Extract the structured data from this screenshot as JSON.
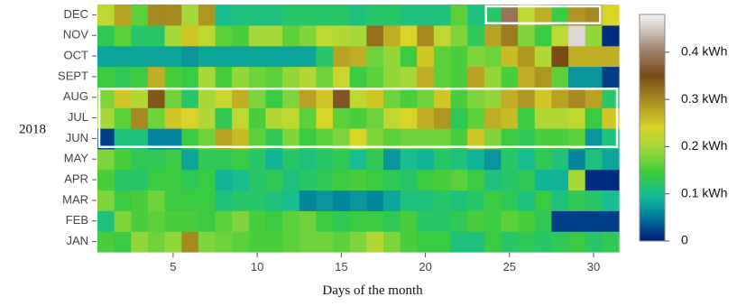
{
  "chart_data": {
    "type": "heatmap",
    "title": "",
    "xlabel": "Days of the month",
    "ylabel": "",
    "year_label": "2018",
    "x": [
      1,
      2,
      3,
      4,
      5,
      6,
      7,
      8,
      9,
      10,
      11,
      12,
      13,
      14,
      15,
      16,
      17,
      18,
      19,
      20,
      21,
      22,
      23,
      24,
      25,
      26,
      27,
      28,
      29,
      30,
      31
    ],
    "x_ticks": [
      5,
      10,
      15,
      20,
      25,
      30
    ],
    "months": [
      "JAN",
      "FEB",
      "MAR",
      "APR",
      "MAY",
      "JUN",
      "JUL",
      "AUG",
      "SEPT",
      "OCT",
      "NOV",
      "DEC"
    ],
    "colorscale": {
      "min": 0,
      "max": 0.48,
      "unit": "kWh",
      "ticks": [
        0,
        0.1,
        0.2,
        0.3,
        0.4
      ],
      "tick_labels": [
        "0",
        "0.1 kWh",
        "0.2 kWh",
        "0.3 kWh",
        "0.4 kWh"
      ],
      "stops": [
        [
          0.0,
          "#001a78"
        ],
        [
          0.1,
          "#00739f"
        ],
        [
          0.2,
          "#14bd96"
        ],
        [
          0.3,
          "#3ecc3c"
        ],
        [
          0.42,
          "#a8d93a"
        ],
        [
          0.5,
          "#d8d428"
        ],
        [
          0.62,
          "#a88c22"
        ],
        [
          0.73,
          "#7a4a15"
        ],
        [
          0.84,
          "#a0826c"
        ],
        [
          1.0,
          "#f5f5f5"
        ]
      ]
    },
    "values": [
      [
        0.15,
        0.14,
        0.19,
        0.17,
        0.19,
        0.3,
        0.18,
        0.17,
        0.16,
        0.15,
        0.15,
        0.16,
        0.17,
        0.17,
        0.16,
        0.18,
        0.21,
        0.18,
        0.15,
        0.14,
        0.14,
        0.11,
        0.11,
        0.14,
        0.12,
        0.13,
        0.12,
        0.13,
        0.14,
        0.12,
        0.13
      ],
      [
        0.11,
        0.18,
        0.15,
        0.16,
        0.15,
        0.15,
        0.14,
        0.16,
        0.18,
        0.15,
        0.14,
        0.16,
        0.17,
        0.14,
        0.13,
        0.14,
        0.14,
        0.13,
        0.15,
        0.12,
        0.12,
        0.13,
        0.15,
        0.14,
        0.16,
        0.15,
        0.13,
        0.02,
        0.02,
        0.02,
        0.02
      ],
      [
        0.18,
        0.14,
        0.15,
        0.17,
        0.14,
        0.14,
        0.14,
        0.11,
        0.12,
        0.12,
        0.11,
        0.1,
        0.06,
        0.07,
        0.06,
        0.07,
        0.06,
        0.08,
        0.11,
        0.11,
        0.12,
        0.11,
        0.12,
        0.14,
        0.13,
        0.11,
        0.14,
        0.11,
        0.13,
        0.12,
        0.1
      ],
      [
        0.15,
        0.12,
        0.12,
        0.14,
        0.14,
        0.13,
        0.14,
        0.09,
        0.1,
        0.12,
        0.13,
        0.11,
        0.12,
        0.13,
        0.14,
        0.15,
        0.14,
        0.13,
        0.12,
        0.14,
        0.15,
        0.16,
        0.14,
        0.11,
        0.12,
        0.13,
        0.09,
        0.09,
        0.2,
        0.01,
        0.01
      ],
      [
        0.18,
        0.15,
        0.13,
        0.13,
        0.14,
        0.08,
        0.13,
        0.13,
        0.14,
        0.12,
        0.09,
        0.12,
        0.11,
        0.12,
        0.13,
        0.1,
        0.13,
        0.07,
        0.1,
        0.09,
        0.12,
        0.11,
        0.09,
        0.07,
        0.12,
        0.1,
        0.13,
        0.11,
        0.06,
        0.11,
        0.08
      ],
      [
        0.02,
        0.11,
        0.11,
        0.06,
        0.06,
        0.14,
        0.17,
        0.28,
        0.26,
        0.16,
        0.13,
        0.18,
        0.14,
        0.16,
        0.18,
        0.24,
        0.18,
        0.16,
        0.17,
        0.17,
        0.17,
        0.15,
        0.25,
        0.18,
        0.14,
        0.13,
        0.15,
        0.15,
        0.16,
        0.07,
        0.11
      ],
      [
        0.2,
        0.16,
        0.3,
        0.17,
        0.25,
        0.24,
        0.21,
        0.13,
        0.22,
        0.15,
        0.21,
        0.22,
        0.16,
        0.24,
        0.16,
        0.15,
        0.17,
        0.22,
        0.24,
        0.27,
        0.29,
        0.13,
        0.16,
        0.27,
        0.26,
        0.14,
        0.21,
        0.21,
        0.22,
        0.14,
        0.25
      ],
      [
        0.18,
        0.25,
        0.21,
        0.34,
        0.17,
        0.12,
        0.2,
        0.23,
        0.27,
        0.18,
        0.14,
        0.18,
        0.28,
        0.25,
        0.36,
        0.22,
        0.25,
        0.17,
        0.15,
        0.17,
        0.25,
        0.15,
        0.18,
        0.19,
        0.27,
        0.29,
        0.25,
        0.28,
        0.3,
        0.28,
        0.12
      ],
      [
        0.14,
        0.13,
        0.14,
        0.27,
        0.15,
        0.14,
        0.2,
        0.15,
        0.19,
        0.17,
        0.16,
        0.19,
        0.21,
        0.17,
        0.23,
        0.14,
        0.16,
        0.19,
        0.2,
        0.27,
        0.16,
        0.15,
        0.28,
        0.19,
        0.15,
        0.27,
        0.29,
        0.16,
        0.07,
        0.07,
        0.02
      ],
      [
        0.08,
        0.08,
        0.08,
        0.08,
        0.08,
        0.07,
        0.08,
        0.08,
        0.08,
        0.08,
        0.08,
        0.08,
        0.08,
        0.12,
        0.28,
        0.27,
        0.17,
        0.19,
        0.14,
        0.25,
        0.16,
        0.15,
        0.18,
        0.17,
        0.26,
        0.29,
        0.21,
        0.35,
        0.27,
        0.27,
        0.27
      ],
      [
        0.13,
        0.16,
        0.12,
        0.12,
        0.2,
        0.25,
        0.22,
        0.16,
        0.15,
        0.2,
        0.2,
        0.16,
        0.18,
        0.22,
        0.21,
        0.2,
        0.32,
        0.27,
        0.24,
        0.3,
        0.22,
        0.18,
        0.13,
        0.28,
        0.31,
        0.18,
        0.14,
        0.22,
        0.46,
        0.19,
        0.01
      ],
      [
        0.22,
        0.28,
        0.16,
        0.3,
        0.3,
        0.2,
        0.29,
        0.1,
        0.11,
        0.11,
        0.11,
        0.12,
        0.12,
        0.12,
        0.12,
        0.11,
        0.12,
        0.12,
        0.11,
        0.11,
        0.11,
        0.16,
        0.11,
        0.12,
        0.39,
        0.22,
        0.27,
        0.14,
        0.29,
        0.3,
        0.24
      ]
    ],
    "highlights": [
      {
        "from_day": 24,
        "to_day": 30,
        "months": [
          "DEC"
        ]
      },
      {
        "from_day": 1,
        "to_day": 31,
        "months": [
          "JUN",
          "JUL",
          "AUG"
        ]
      }
    ]
  }
}
